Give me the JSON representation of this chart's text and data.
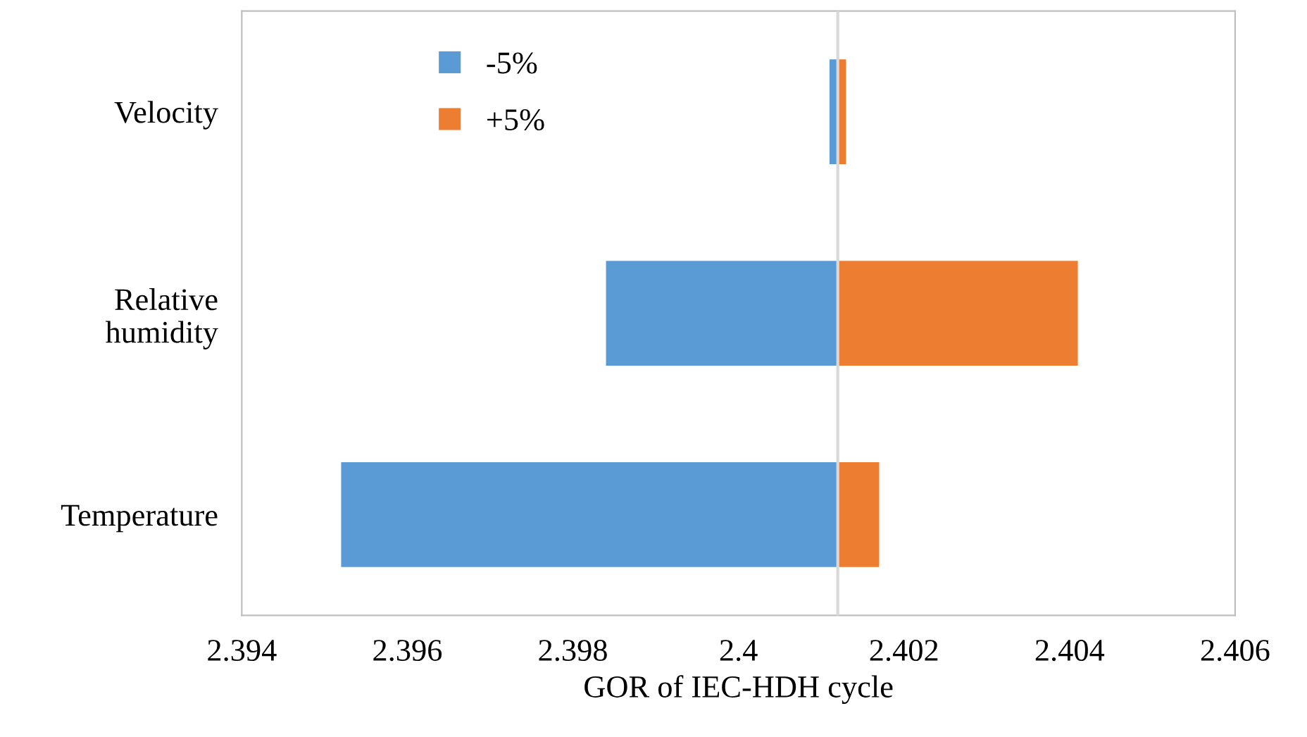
{
  "chart_data": {
    "type": "bar",
    "orientation": "horizontal",
    "xlabel": "GOR of IEC-HDH cycle",
    "categories": [
      "Velocity",
      "Relative\nhumidity",
      "Temperature"
    ],
    "series": [
      {
        "name": "-5%",
        "color": "#5b9bd5",
        "base": [
          2.4011,
          2.3984,
          2.3952
        ],
        "values": [
          0.0001,
          0.0028,
          0.006
        ]
      },
      {
        "name": "+5%",
        "color": "#ed7d31",
        "base": [
          2.4012,
          2.4012,
          2.4012
        ],
        "values": [
          0.0001,
          0.0029,
          0.0005
        ]
      }
    ],
    "xlim": [
      2.394,
      2.406
    ],
    "xticks": [
      2.394,
      2.396,
      2.398,
      2.4,
      2.402,
      2.404,
      2.406
    ],
    "ref_lines": [
      {
        "axis": "x",
        "value": 2.4012,
        "color": "#d9d9d9"
      }
    ],
    "legend": "top left",
    "grid": false
  }
}
